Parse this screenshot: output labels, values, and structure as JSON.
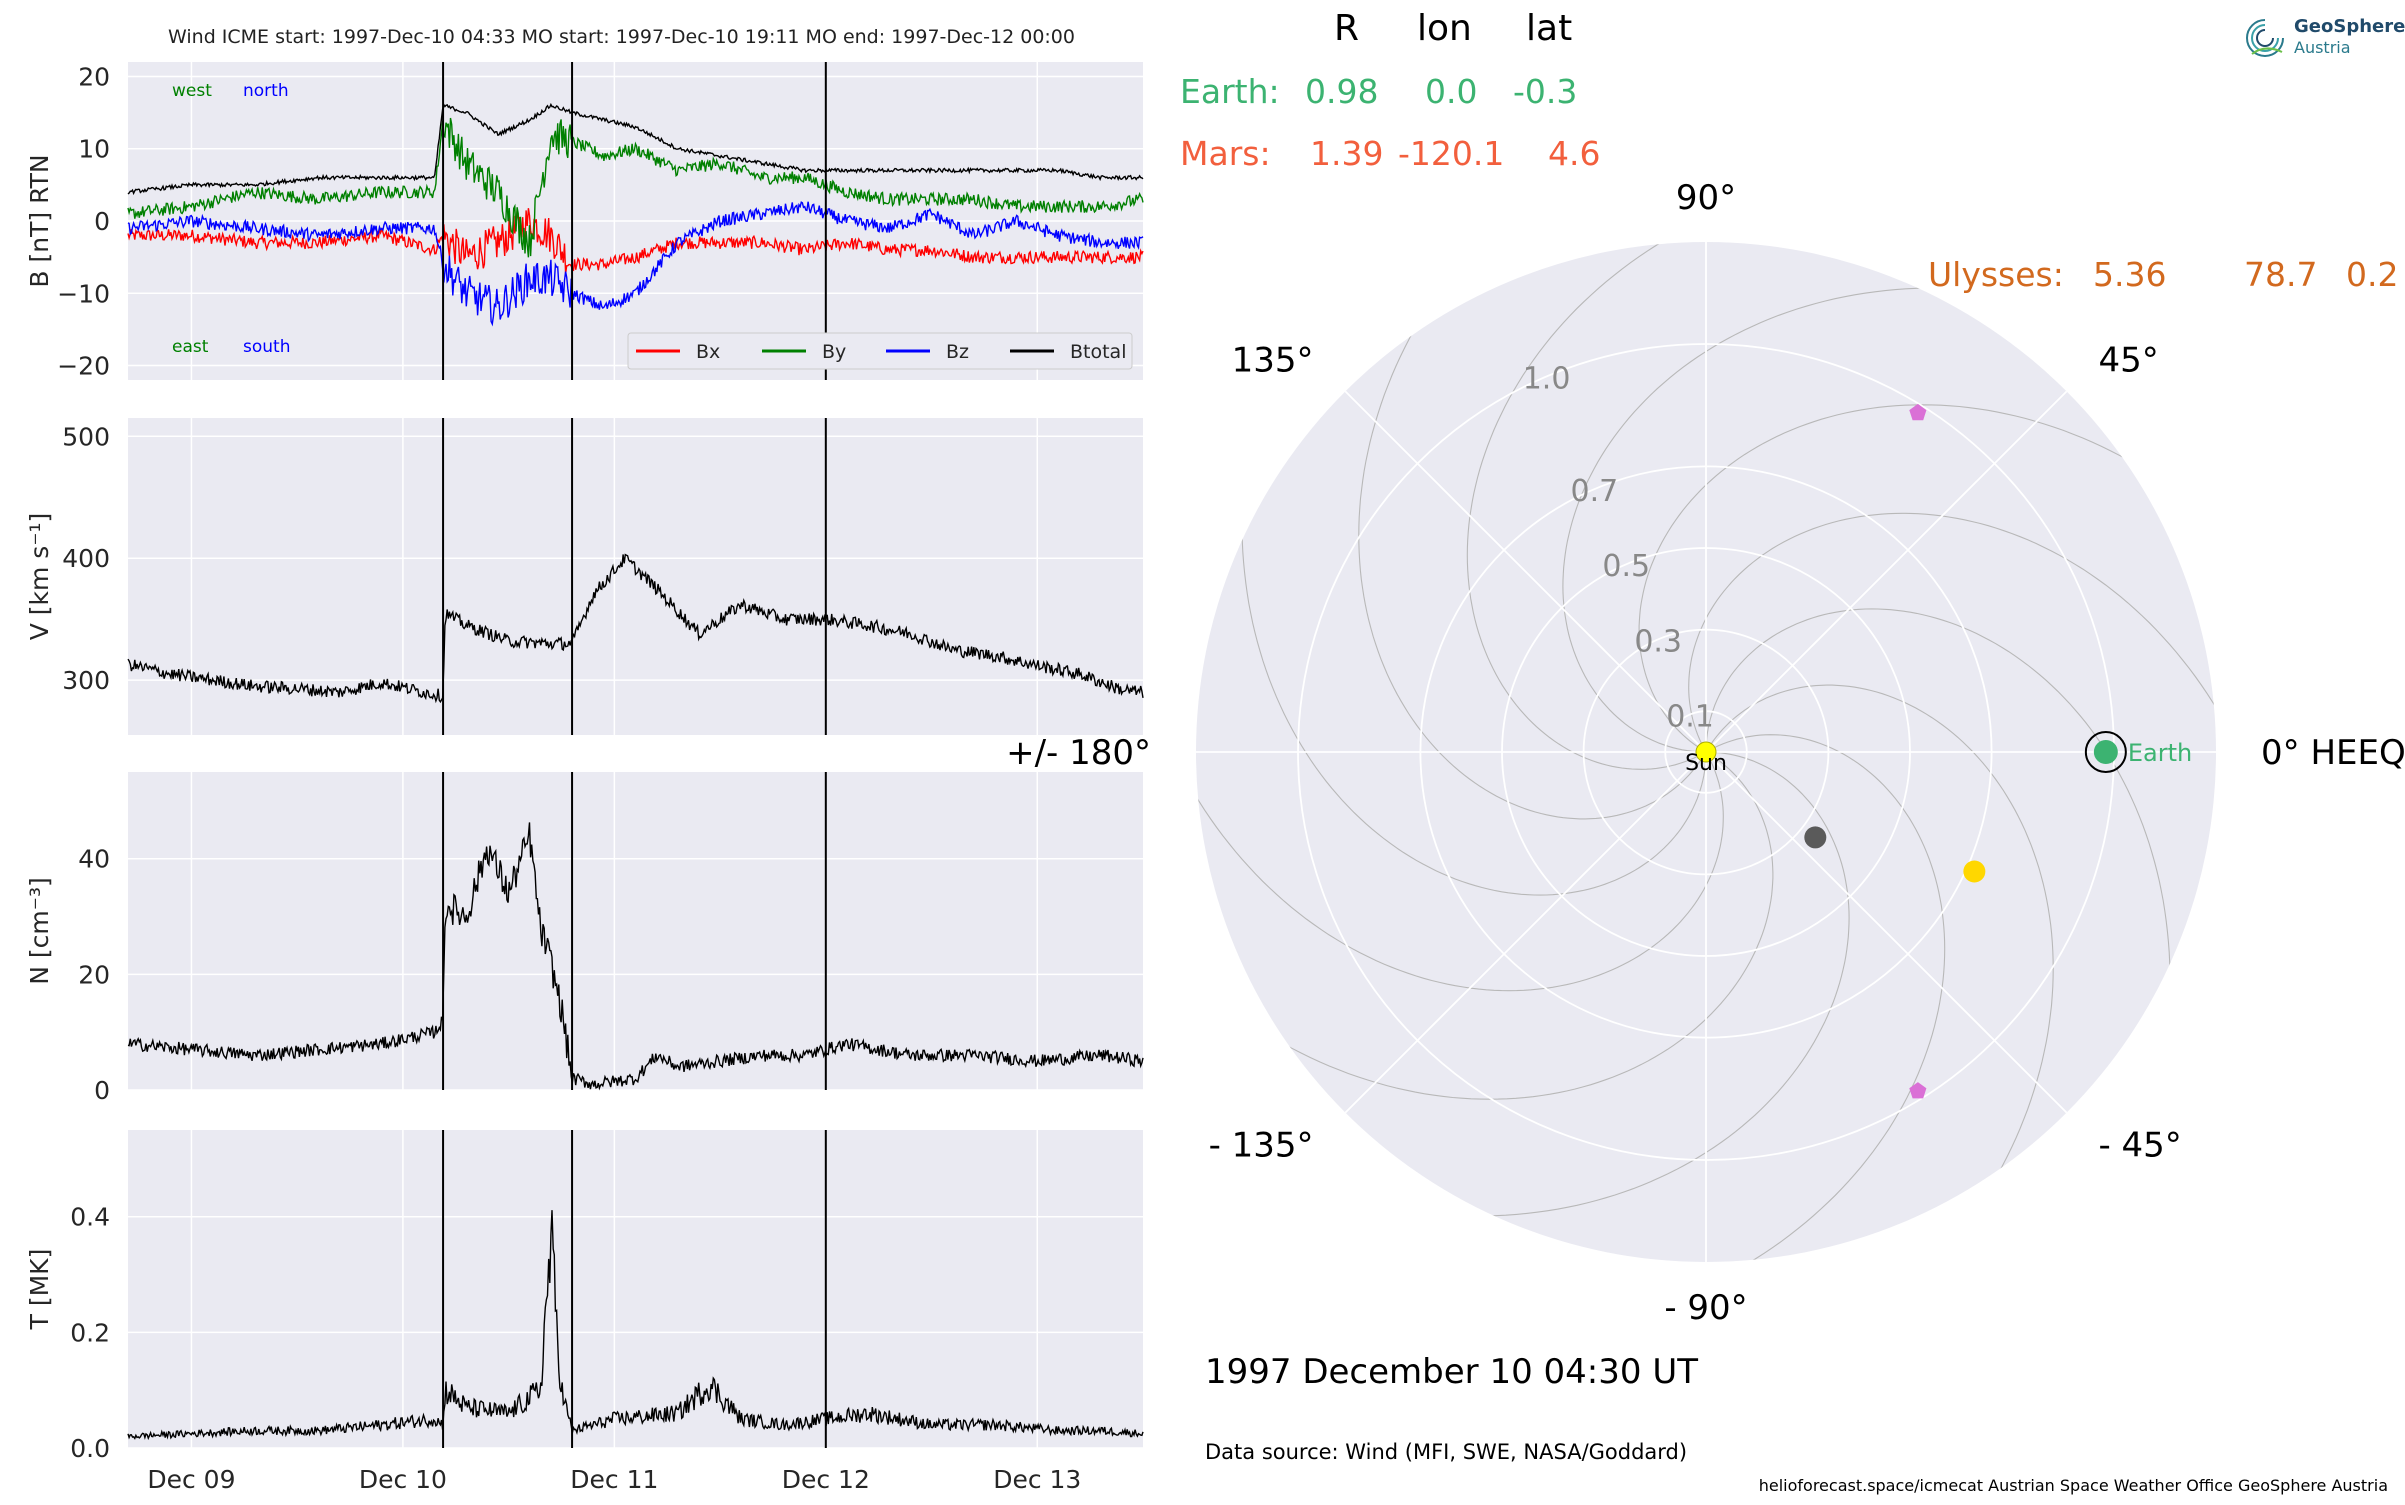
{
  "header": {
    "plot_title": "Wind    ICME start: 1997-Dec-10 04:33   MO start: 1997-Dec-10 19:11   MO end: 1997-Dec-12 00:00"
  },
  "positions": {
    "col_R": "R",
    "col_lon": "lon",
    "col_lat": "lat",
    "earth": {
      "name": "Earth:",
      "R": "0.98",
      "lon": "0.0",
      "lat": "-0.3",
      "color": "#3cb371"
    },
    "mars": {
      "name": "Mars:",
      "R": "1.39",
      "lon": "-120.1",
      "lat": "4.6",
      "color": "#f25f3d"
    },
    "ulysses": {
      "name": "Ulysses:",
      "R": "5.36",
      "lon": "78.7",
      "lat": "0.2",
      "color": "#d2691e"
    }
  },
  "logo": {
    "line1": "GeoSphere",
    "line2": "Austria"
  },
  "date_label": "1997 December 10  04:30 UT",
  "source_label": "Data source: Wind (MFI, SWE, NASA/Goddard)",
  "footer": "helioforecast.space/icmecat   Austrian Space Weather Office   GeoSphere Austria",
  "chart_data": [
    {
      "type": "line",
      "panel": "magnetic-field",
      "ylabel": "B [nT] RTN",
      "ylim": [
        -22,
        22
      ],
      "yticks": [
        "20",
        "10",
        "0",
        "−10",
        "−20"
      ],
      "ytick_values": [
        20,
        10,
        0,
        -10,
        -20
      ],
      "xlim": [
        0,
        4.8
      ],
      "corner_labels": {
        "top_left": "west",
        "top_right": "north",
        "bottom_left": "east",
        "bottom_right": "south"
      },
      "corner_colors": {
        "left": "#008000",
        "right": "#0000ff"
      },
      "legend_position": "lower-right",
      "series": [
        {
          "name": "Bx",
          "color": "#ff0000"
        },
        {
          "name": "By",
          "color": "#008000"
        },
        {
          "name": "Bz",
          "color": "#0000ff"
        },
        {
          "name": "Btotal",
          "color": "#000000"
        }
      ],
      "x": [
        0,
        0.3,
        0.6,
        0.9,
        1.2,
        1.45,
        1.49,
        1.6,
        1.75,
        1.9,
        2.0,
        2.1,
        2.25,
        2.4,
        2.6,
        2.8,
        3.0,
        3.2,
        3.4,
        3.6,
        3.8,
        4.0,
        4.2,
        4.4,
        4.6,
        4.8
      ],
      "values": {
        "Bx": [
          -2,
          -2,
          -3,
          -3,
          -2,
          -4,
          -2,
          -5,
          -3,
          0,
          -2,
          -6,
          -6,
          -5,
          -3,
          -3,
          -3,
          -4,
          -3,
          -4,
          -4,
          -5,
          -5,
          -5,
          -5,
          -5
        ],
        "By": [
          1,
          2,
          4,
          3,
          4,
          4,
          14,
          8,
          4,
          -3,
          12,
          11,
          9,
          10,
          7,
          8,
          6,
          6,
          4,
          3,
          3,
          3,
          2,
          2,
          2,
          3
        ],
        "Bz": [
          -1,
          0,
          -1,
          -2,
          -1,
          -1,
          -6,
          -10,
          -12,
          -8,
          -8,
          -10,
          -12,
          -10,
          -3,
          0,
          1,
          2,
          0,
          -1,
          1,
          -2,
          0,
          -2,
          -3,
          -3
        ],
        "Btotal": [
          4,
          5,
          5,
          6,
          6,
          6,
          16,
          15,
          12,
          14,
          16,
          15,
          14,
          13,
          10,
          9,
          8,
          7,
          7,
          7,
          7,
          7,
          7,
          7,
          6,
          6
        ]
      },
      "event_lines_x": [
        1.49,
        2.1,
        3.3
      ]
    },
    {
      "type": "line",
      "panel": "speed",
      "ylabel": "V [km s⁻¹]",
      "ylim": [
        255,
        515
      ],
      "yticks": [
        "500",
        "400",
        "300"
      ],
      "ytick_values": [
        500,
        400,
        300
      ],
      "xlim": [
        0,
        4.8
      ],
      "series": [
        {
          "name": "V",
          "color": "#000000"
        }
      ],
      "x": [
        0,
        0.2,
        0.4,
        0.6,
        0.8,
        1.0,
        1.2,
        1.4,
        1.49,
        1.5,
        1.6,
        1.8,
        2.0,
        2.1,
        2.2,
        2.35,
        2.5,
        2.7,
        2.9,
        3.1,
        3.3,
        3.5,
        3.7,
        3.9,
        4.1,
        4.3,
        4.5,
        4.7,
        4.8
      ],
      "values": [
        {
          "name": "V",
          "values": [
            313,
            305,
            300,
            295,
            293,
            290,
            298,
            290,
            287,
            355,
            345,
            332,
            330,
            330,
            370,
            400,
            375,
            338,
            362,
            350,
            350,
            345,
            338,
            325,
            320,
            312,
            305,
            292,
            290
          ]
        }
      ],
      "event_lines_x": [
        1.49,
        2.1,
        3.3
      ]
    },
    {
      "type": "line",
      "panel": "density",
      "ylabel": "N [cm⁻³]",
      "ylim": [
        0,
        55
      ],
      "yticks": [
        "40",
        "20",
        "0"
      ],
      "ytick_values": [
        40,
        20,
        0
      ],
      "xlim": [
        0,
        4.8
      ],
      "series": [
        {
          "name": "N",
          "color": "#000000"
        }
      ],
      "x": [
        0,
        0.3,
        0.6,
        0.9,
        1.2,
        1.45,
        1.49,
        1.5,
        1.6,
        1.7,
        1.8,
        1.9,
        1.95,
        2.0,
        2.05,
        2.1,
        2.2,
        2.4,
        2.5,
        2.6,
        2.8,
        3.0,
        3.2,
        3.4,
        3.7,
        4.0,
        4.3,
        4.6,
        4.8
      ],
      "values": [
        {
          "name": "N",
          "values": [
            8,
            7,
            6,
            7,
            8,
            10,
            12,
            32,
            30,
            42,
            34,
            44,
            28,
            22,
            14,
            2,
            1,
            2,
            6,
            4,
            5,
            6,
            6,
            8,
            6,
            6,
            5,
            6,
            5
          ]
        }
      ],
      "event_lines_x": [
        1.49,
        2.1,
        3.3
      ]
    },
    {
      "type": "line",
      "panel": "temperature",
      "ylabel": "T [MK]",
      "ylim": [
        0,
        0.55
      ],
      "yticks": [
        "0.4",
        "0.2",
        "0.0"
      ],
      "ytick_values": [
        0.4,
        0.2,
        0.0
      ],
      "xlim": [
        0,
        4.8
      ],
      "xticks": [
        "Dec 09",
        "Dec 10",
        "Dec 11",
        "Dec 12",
        "Dec 13"
      ],
      "xtick_values": [
        0.3,
        1.3,
        2.3,
        3.3,
        4.3
      ],
      "series": [
        {
          "name": "T",
          "color": "#000000"
        }
      ],
      "x": [
        0,
        0.3,
        0.6,
        0.9,
        1.2,
        1.45,
        1.49,
        1.5,
        1.6,
        1.8,
        1.95,
        2.0,
        2.05,
        2.1,
        2.3,
        2.6,
        2.75,
        2.9,
        3.1,
        3.3,
        3.5,
        3.8,
        4.1,
        4.4,
        4.6,
        4.8
      ],
      "values": [
        {
          "name": "T",
          "values": [
            0.02,
            0.025,
            0.03,
            0.03,
            0.04,
            0.05,
            0.04,
            0.1,
            0.07,
            0.06,
            0.1,
            0.36,
            0.1,
            0.03,
            0.05,
            0.06,
            0.11,
            0.05,
            0.04,
            0.05,
            0.06,
            0.04,
            0.04,
            0.03,
            0.03,
            0.025
          ]
        }
      ],
      "event_lines_x": [
        1.49,
        2.1,
        3.3
      ]
    },
    {
      "type": "scatter",
      "panel": "polar-position-plot",
      "angle_labels": {
        "deg90": "90°",
        "deg45": "45°",
        "deg0": "0° HEEQ",
        "deg_m45": "- 45°",
        "deg_m90": "- 90°",
        "deg_m135": "- 135°",
        "deg180": "+/- 180°",
        "deg135": "135°"
      },
      "radial_ticks": [
        {
          "value": 0.1,
          "label": "0.1"
        },
        {
          "value": 0.3,
          "label": "0.3"
        },
        {
          "value": 0.5,
          "label": "0.5"
        },
        {
          "value": 0.7,
          "label": "0.7"
        },
        {
          "value": 1.0,
          "label": "1.0"
        }
      ],
      "rlim": [
        0,
        1.25
      ],
      "points": [
        {
          "name": "Sun",
          "label": "Sun",
          "r": 0.0,
          "lon": 0,
          "color": "#ffff00",
          "marker": "circle",
          "size": 10
        },
        {
          "name": "Earth",
          "label": "Earth",
          "r": 0.98,
          "lon": 0.0,
          "color": "#3cb371",
          "marker": "circle",
          "size": 12
        },
        {
          "name": "Mercury-like grey planet",
          "r": 0.34,
          "lon": -38,
          "color": "#5a5a5a",
          "marker": "circle",
          "size": 11
        },
        {
          "name": "Venus-like yellow planet",
          "r": 0.72,
          "lon": -24,
          "color": "#ffd700",
          "marker": "circle",
          "size": 11
        },
        {
          "name": "Spacecraft upper",
          "r": 0.98,
          "lon": 58,
          "color": "#da70d6",
          "marker": "pentagon",
          "size": 9
        },
        {
          "name": "Spacecraft lower",
          "r": 0.98,
          "lon": -58,
          "color": "#da70d6",
          "marker": "pentagon",
          "size": 9
        }
      ]
    }
  ]
}
